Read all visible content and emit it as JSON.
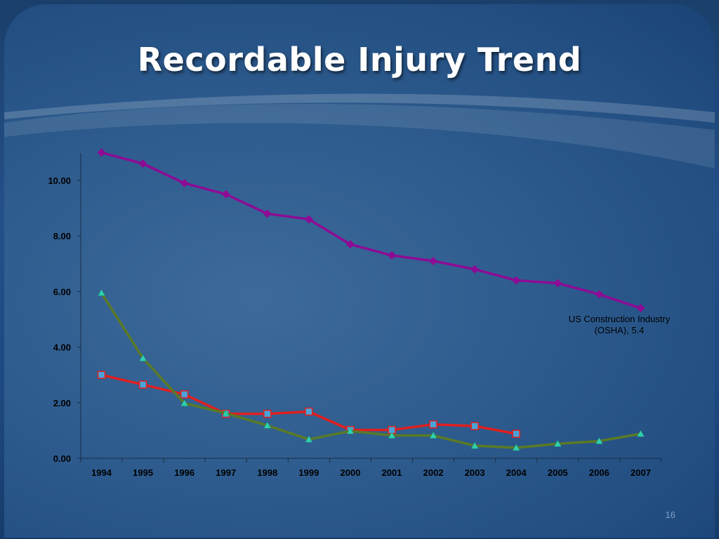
{
  "slide": {
    "title": "Recordable Injury Trend",
    "page_number": "16"
  },
  "chart_data": {
    "type": "line",
    "title": "",
    "xlabel": "",
    "ylabel": "",
    "categories": [
      "1994",
      "1995",
      "1996",
      "1997",
      "1998",
      "1999",
      "2000",
      "2001",
      "2002",
      "2003",
      "2004",
      "2005",
      "2006",
      "2007"
    ],
    "ylim": [
      0,
      11
    ],
    "y_ticks": [
      "0.00",
      "2.00",
      "4.00",
      "6.00",
      "8.00",
      "10.00"
    ],
    "legend": "none",
    "series": [
      {
        "color": "#8e0b95",
        "marker": "diamond",
        "values": [
          11.0,
          10.6,
          9.9,
          9.5,
          8.8,
          8.6,
          7.7,
          7.3,
          7.1,
          6.8,
          6.4,
          6.3,
          5.9,
          5.4
        ]
      },
      {
        "color": "#e01f1f",
        "marker": "square",
        "values": [
          3.0,
          2.65,
          2.3,
          1.6,
          1.6,
          1.68,
          1.02,
          1.02,
          1.22,
          1.16,
          0.88,
          null,
          null,
          null
        ]
      },
      {
        "color": "#5a7a25",
        "marker": "triangle",
        "values": [
          5.95,
          3.6,
          1.98,
          1.62,
          1.18,
          0.68,
          0.98,
          0.82,
          0.82,
          0.45,
          0.38,
          0.52,
          0.62,
          0.88
        ]
      }
    ],
    "annotations": [
      {
        "text_line1": "US Construction Industry",
        "text_line2": "(OSHA), 5.4"
      }
    ]
  }
}
